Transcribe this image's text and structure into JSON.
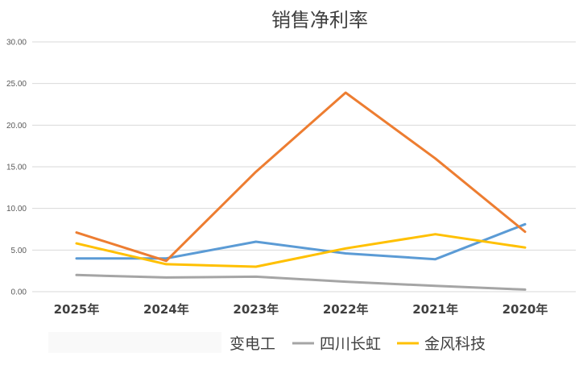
{
  "chart_data": {
    "type": "line",
    "title": "销售净利率",
    "categories": [
      "2025年",
      "2024年",
      "2023年",
      "2022年",
      "2021年",
      "2020年"
    ],
    "ylim": [
      0,
      30
    ],
    "yticks": [
      "0.00",
      "5.00",
      "10.00",
      "15.00",
      "20.00",
      "25.00",
      "30.00"
    ],
    "grid": true,
    "legend_position": "bottom",
    "series": [
      {
        "name": "",
        "color": "#5B9BD5",
        "values": [
          4.0,
          4.0,
          6.0,
          4.6,
          3.9,
          8.1
        ]
      },
      {
        "name": "",
        "color": "#ED7D31",
        "values": [
          7.1,
          3.7,
          14.4,
          23.9,
          16.0,
          7.2
        ]
      },
      {
        "name": "四川长虹",
        "color": "#A5A5A5",
        "values": [
          2.0,
          1.7,
          1.8,
          1.2,
          0.7,
          0.25
        ]
      },
      {
        "name": "金风科技",
        "color": "#FFC000",
        "values": [
          5.8,
          3.3,
          3.0,
          5.2,
          6.9,
          5.3
        ]
      }
    ],
    "legend_visible": [
      {
        "label": "变电工",
        "color": ""
      },
      {
        "label": "四川长虹",
        "color": "#A5A5A5"
      },
      {
        "label": "金风科技",
        "color": "#FFC000"
      }
    ]
  }
}
